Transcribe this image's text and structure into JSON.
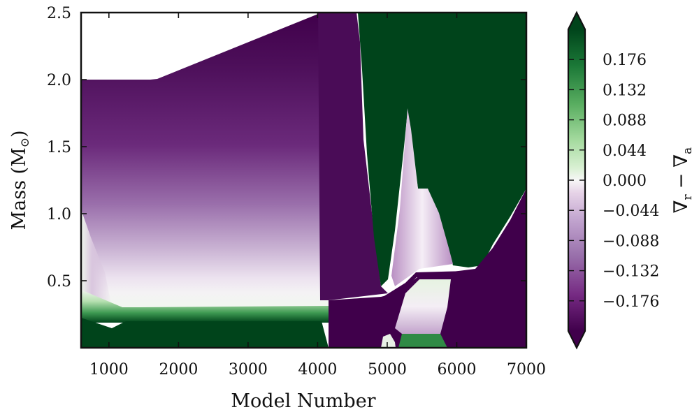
{
  "chart_data": {
    "type": "heatmap",
    "title": "",
    "xlabel": "Model Number",
    "ylabel_main": "Mass (M",
    "ylabel_sub": "⊙",
    "ylabel_close": ")",
    "xlim": [
      600,
      7000
    ],
    "ylim": [
      0,
      2.5
    ],
    "xticks": [
      {
        "value": 1000,
        "label": "1000"
      },
      {
        "value": 2000,
        "label": "2000"
      },
      {
        "value": 3000,
        "label": "3000"
      },
      {
        "value": 4000,
        "label": "4000"
      },
      {
        "value": 5000,
        "label": "5000"
      },
      {
        "value": 6000,
        "label": "6000"
      },
      {
        "value": 7000,
        "label": "7000"
      }
    ],
    "yticks": [
      {
        "value": 0.5,
        "label": "0.5"
      },
      {
        "value": 1.0,
        "label": "1.0"
      },
      {
        "value": 1.5,
        "label": "1.5"
      },
      {
        "value": 2.0,
        "label": "2.0"
      },
      {
        "value": 2.5,
        "label": "2.5"
      }
    ],
    "colorbar": {
      "label_nabla": "∇",
      "label_r": "r",
      "label_minus": "−",
      "label_a": "a",
      "colormap": "PRGn",
      "range": [
        -0.22,
        0.22
      ],
      "extend": "both",
      "ticks": [
        {
          "value": 0.176,
          "label": "0.176"
        },
        {
          "value": 0.132,
          "label": "0.132"
        },
        {
          "value": 0.088,
          "label": "0.088"
        },
        {
          "value": 0.044,
          "label": "0.044"
        },
        {
          "value": 0.0,
          "label": "0.000"
        },
        {
          "value": -0.044,
          "label": "−0.044"
        },
        {
          "value": -0.088,
          "label": "−0.088"
        },
        {
          "value": -0.132,
          "label": "−0.132"
        },
        {
          "value": -0.176,
          "label": "−0.176"
        }
      ]
    },
    "colors": {
      "dark_green": "#00441b",
      "dark_purple": "#40004b",
      "mid_purple": "#762a83",
      "white": "#f7f7f7"
    },
    "regions": [
      {
        "name": "radiative envelope (purple, strongly negative)",
        "x_range": [
          600,
          4150
        ],
        "mass_range": [
          0.25,
          2.0
        ],
        "value_top": -0.2,
        "value_bottom": -0.01
      },
      {
        "name": "convective core (green, positive)",
        "x_range": [
          600,
          4150
        ],
        "mass_range": [
          0.0,
          0.2
        ],
        "value": 0.22
      },
      {
        "name": "convective envelope (green, positive)",
        "x_range": [
          4600,
          7000
        ],
        "mass_range": [
          0.6,
          2.5
        ],
        "value": 0.22
      },
      {
        "name": "radiative core after core exhaustion (purple)",
        "x_range": [
          4200,
          7000
        ],
        "mass_range": [
          0.0,
          0.45
        ],
        "value": -0.2
      }
    ]
  }
}
